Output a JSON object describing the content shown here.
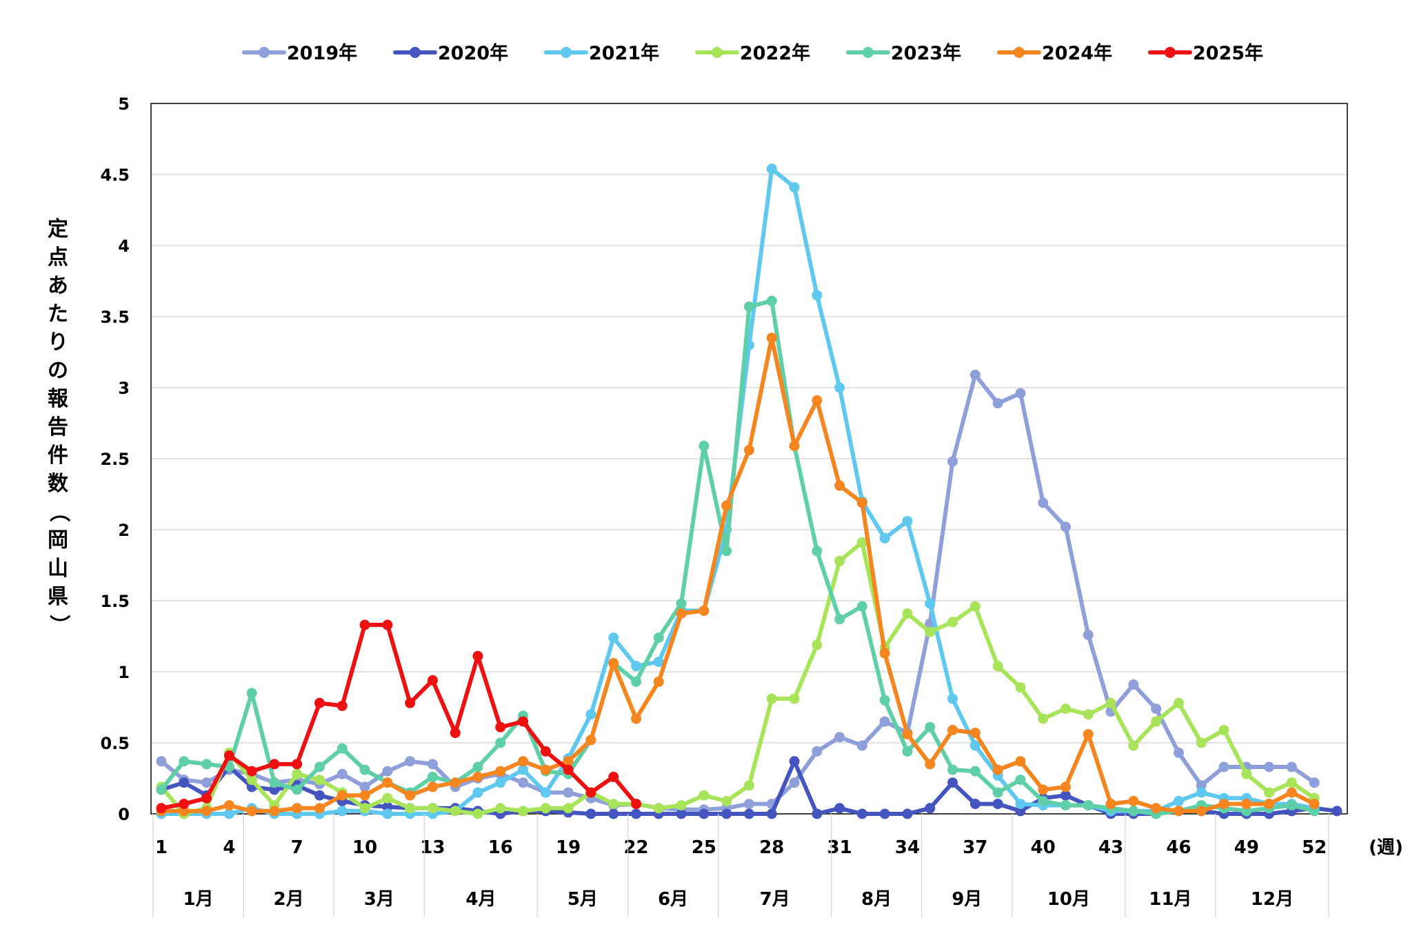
{
  "chart_data": {
    "type": "line",
    "title": "",
    "ylabel": "定点あたりの報告件数（岡山県）",
    "xunit": "(週)",
    "ylim": [
      0,
      5
    ],
    "yticks": [
      "0",
      "0.5",
      "1",
      "1.5",
      "2",
      "2.5",
      "3",
      "3.5",
      "4",
      "4.5",
      "5"
    ],
    "xlim": [
      1,
      53
    ],
    "xticks": [
      1,
      4,
      7,
      10,
      13,
      16,
      19,
      22,
      25,
      28,
      31,
      34,
      37,
      40,
      43,
      46,
      49,
      52
    ],
    "grid": true,
    "legend_position": "top",
    "months": [
      {
        "label": "1月",
        "start": 1,
        "end": 5
      },
      {
        "label": "2月",
        "start": 5,
        "end": 9
      },
      {
        "label": "3月",
        "start": 9,
        "end": 13
      },
      {
        "label": "4月",
        "start": 13,
        "end": 18
      },
      {
        "label": "5月",
        "start": 18,
        "end": 22
      },
      {
        "label": "6月",
        "start": 22,
        "end": 26
      },
      {
        "label": "7月",
        "start": 26,
        "end": 31
      },
      {
        "label": "8月",
        "start": 31,
        "end": 35
      },
      {
        "label": "9月",
        "start": 35,
        "end": 39
      },
      {
        "label": "10月",
        "start": 39,
        "end": 44
      },
      {
        "label": "11月",
        "start": 44,
        "end": 48
      },
      {
        "label": "12月",
        "start": 48,
        "end": 53
      }
    ],
    "series": [
      {
        "name": "2019年",
        "color": "#8e9fd9",
        "start": 1,
        "values": [
          0.37,
          0.24,
          0.22,
          0.31,
          0.28,
          0.22,
          0.24,
          0.21,
          0.28,
          0.19,
          0.3,
          0.37,
          0.35,
          0.19,
          0.25,
          0.28,
          0.22,
          0.15,
          0.15,
          0.11,
          0.06,
          0.07,
          0.04,
          0.03,
          0.03,
          0.04,
          0.07,
          0.07,
          0.22,
          0.44,
          0.54,
          0.48,
          0.65,
          0.57,
          1.34,
          2.48,
          3.09,
          2.89,
          2.96,
          2.19,
          2.02,
          1.26,
          0.72,
          0.91,
          0.74,
          0.43,
          0.2,
          0.33,
          0.33,
          0.33,
          0.33,
          0.22
        ]
      },
      {
        "name": "2020年",
        "color": "#4455c0",
        "start": 1,
        "values": [
          0.17,
          0.22,
          0.13,
          0.33,
          0.19,
          0.17,
          0.2,
          0.13,
          0.09,
          0.06,
          0.05,
          0.04,
          0.04,
          0.04,
          0.02,
          0.0,
          0.02,
          0.02,
          0.01,
          0.0,
          0.0,
          0.0,
          0.0,
          0.0,
          0.0,
          0.0,
          0.0,
          0.0,
          0.37,
          0.0,
          0.04,
          0.0,
          0.0,
          0.0,
          0.04,
          0.22,
          0.07,
          0.07,
          0.02,
          0.11,
          0.13,
          0.06,
          0.0,
          0.0,
          0.0,
          0.02,
          0.02,
          0.0,
          0.0,
          0.0,
          0.02,
          0.04,
          0.02
        ]
      },
      {
        "name": "2021年",
        "color": "#5ec8ef",
        "start": 1,
        "values": [
          0.0,
          0.0,
          0.0,
          0.0,
          0.04,
          0.0,
          0.0,
          0.0,
          0.02,
          0.02,
          0.0,
          0.0,
          0.0,
          0.02,
          0.15,
          0.22,
          0.31,
          0.15,
          0.39,
          0.7,
          1.24,
          1.04,
          1.07,
          1.43,
          1.43,
          2.0,
          3.3,
          4.54,
          4.41,
          3.65,
          3.0,
          2.2,
          1.94,
          2.06,
          1.48,
          0.81,
          0.48,
          0.27,
          0.07,
          0.06,
          0.06,
          0.06,
          0.02,
          0.02,
          0.02,
          0.09,
          0.15,
          0.11,
          0.11,
          0.07,
          0.07,
          0.04
        ]
      },
      {
        "name": "2022年",
        "color": "#a8e45a",
        "start": 1,
        "values": [
          0.19,
          0.0,
          0.04,
          0.43,
          0.24,
          0.06,
          0.28,
          0.24,
          0.15,
          0.04,
          0.11,
          0.04,
          0.04,
          0.02,
          0.0,
          0.04,
          0.02,
          0.04,
          0.04,
          0.15,
          0.07,
          0.07,
          0.04,
          0.06,
          0.13,
          0.09,
          0.2,
          0.81,
          0.81,
          1.19,
          1.78,
          1.91,
          1.17,
          1.41,
          1.28,
          1.35,
          1.46,
          1.04,
          0.89,
          0.67,
          0.74,
          0.7,
          0.78,
          0.48,
          0.65,
          0.78,
          0.5,
          0.59,
          0.28,
          0.15,
          0.22,
          0.11
        ]
      },
      {
        "name": "2023年",
        "color": "#5ecfa6",
        "start": 1,
        "values": [
          0.17,
          0.37,
          0.35,
          0.33,
          0.85,
          0.22,
          0.17,
          0.33,
          0.46,
          0.31,
          0.22,
          0.15,
          0.26,
          0.22,
          0.33,
          0.5,
          0.69,
          0.3,
          0.28,
          0.52,
          1.06,
          0.93,
          1.24,
          1.48,
          2.59,
          1.85,
          3.57,
          3.61,
          2.59,
          1.85,
          1.37,
          1.46,
          0.8,
          0.44,
          0.61,
          0.31,
          0.3,
          0.15,
          0.24,
          0.09,
          0.06,
          0.06,
          0.04,
          0.02,
          0.0,
          0.02,
          0.06,
          0.04,
          0.02,
          0.04,
          0.06,
          0.02
        ]
      },
      {
        "name": "2024年",
        "color": "#f5851f",
        "start": 1,
        "values": [
          0.02,
          0.02,
          0.02,
          0.06,
          0.02,
          0.02,
          0.04,
          0.04,
          0.13,
          0.13,
          0.22,
          0.13,
          0.19,
          0.22,
          0.26,
          0.3,
          0.37,
          0.31,
          0.37,
          0.52,
          1.06,
          0.67,
          0.93,
          1.41,
          1.43,
          2.17,
          2.56,
          3.35,
          2.59,
          2.91,
          2.31,
          2.19,
          1.13,
          0.56,
          0.35,
          0.59,
          0.57,
          0.31,
          0.37,
          0.17,
          0.19,
          0.56,
          0.07,
          0.09,
          0.04,
          0.02,
          0.02,
          0.07,
          0.07,
          0.07,
          0.15,
          0.07
        ]
      },
      {
        "name": "2025年",
        "color": "#ee1111",
        "start": 1,
        "values": [
          0.04,
          0.07,
          0.11,
          0.41,
          0.3,
          0.35,
          0.35,
          0.78,
          0.76,
          1.33,
          1.33,
          0.78,
          0.94,
          0.57,
          1.11,
          0.61,
          0.65,
          0.44,
          0.31,
          0.15,
          0.26,
          0.07
        ]
      }
    ]
  }
}
